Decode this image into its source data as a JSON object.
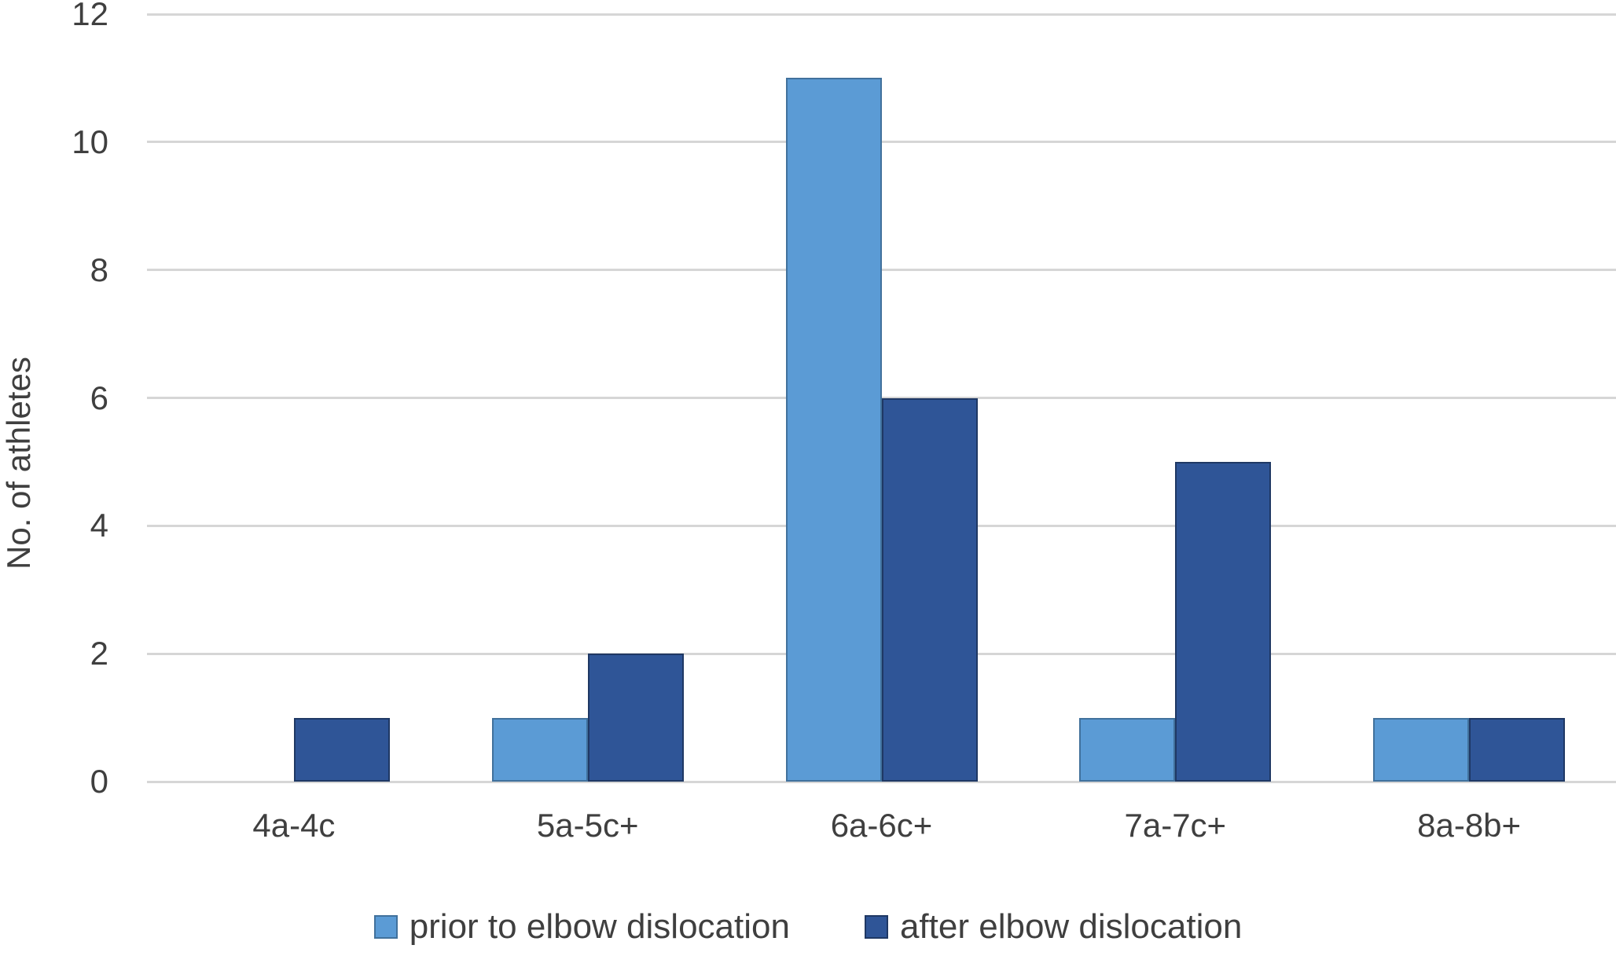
{
  "chart_data": {
    "type": "bar",
    "title": "",
    "xlabel": "",
    "ylabel": "No. of athletes",
    "categories": [
      "4a-4c",
      "5a-5c+",
      "6a-6c+",
      "7a-7c+",
      "8a-8b+"
    ],
    "series": [
      {
        "name": "prior to elbow dislocation",
        "values": [
          0,
          1,
          11,
          1,
          1
        ],
        "fill": "#5B9BD5",
        "border": "#41719C"
      },
      {
        "name": "after elbow dislocation",
        "values": [
          1,
          2,
          6,
          5,
          1
        ],
        "fill": "#2F5597",
        "border": "#1F3864"
      }
    ],
    "ylim": [
      0,
      12
    ],
    "yticks": [
      0,
      2,
      4,
      6,
      8,
      10,
      12
    ],
    "grid": true,
    "gridline_color": "#D6D6D6",
    "axis_text_color": "#3F3F3F",
    "legend_position": "bottom"
  }
}
